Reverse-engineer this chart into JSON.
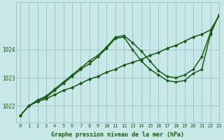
{
  "background_color": "#c8e8e8",
  "grid_color": "#a0c8c8",
  "line_color": "#1a5c1a",
  "xlabel": "Graphe pression niveau de la mer (hPa)",
  "xlim": [
    -0.5,
    23
  ],
  "ylim": [
    1021.4,
    1025.7
  ],
  "yticks": [
    1022,
    1023,
    1024
  ],
  "xticks": [
    0,
    1,
    2,
    3,
    4,
    5,
    6,
    7,
    8,
    9,
    10,
    11,
    12,
    13,
    14,
    15,
    16,
    17,
    18,
    19,
    20,
    21,
    22,
    23
  ],
  "series": [
    {
      "data": [
        1021.65,
        1022.0,
        1022.15,
        1022.25,
        1022.4,
        1022.55,
        1022.65,
        1022.8,
        1022.95,
        1023.05,
        1023.2,
        1023.3,
        1023.45,
        1023.55,
        1023.65,
        1023.8,
        1023.9,
        1024.05,
        1024.15,
        1024.3,
        1024.45,
        1024.55,
        1024.7,
        1025.2
      ],
      "lw": 0.9
    },
    {
      "data": [
        1021.65,
        1022.0,
        1022.15,
        1022.25,
        1022.4,
        1022.55,
        1022.65,
        1022.8,
        1022.95,
        1023.05,
        1023.2,
        1023.3,
        1023.45,
        1023.55,
        1023.65,
        1023.8,
        1023.9,
        1024.05,
        1024.15,
        1024.3,
        1024.45,
        1024.55,
        1024.7,
        1025.2
      ],
      "lw": 0.9
    },
    {
      "data": [
        1021.65,
        1022.0,
        1022.2,
        1022.3,
        1022.55,
        1022.8,
        1023.05,
        1023.3,
        1023.5,
        1023.75,
        1024.05,
        1024.4,
        1024.45,
        1024.0,
        1023.6,
        1023.3,
        1023.1,
        1022.9,
        1022.85,
        1022.9,
        1023.15,
        1023.3,
        1024.55,
        1025.25
      ],
      "lw": 1.1
    },
    {
      "data": [
        1021.65,
        1022.0,
        1022.2,
        1022.35,
        1022.6,
        1022.85,
        1023.1,
        1023.35,
        1023.6,
        1023.8,
        1024.1,
        1024.45,
        1024.5,
        1024.25,
        1023.95,
        1023.6,
        1023.25,
        1023.05,
        1023.0,
        1023.1,
        1023.3,
        1023.75,
        1024.6,
        1025.25
      ],
      "lw": 1.1
    }
  ]
}
